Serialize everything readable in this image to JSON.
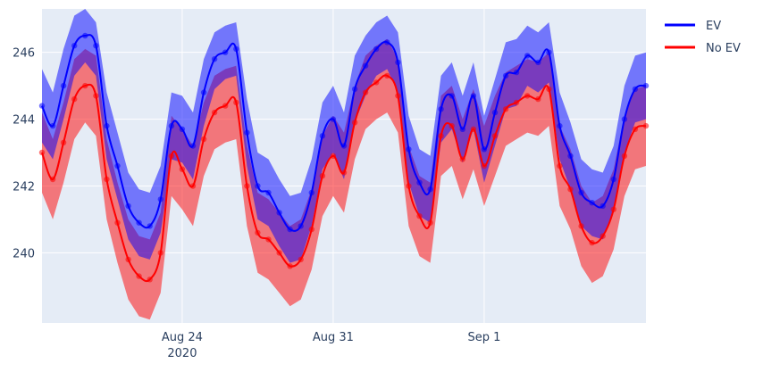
{
  "chart_data": {
    "type": "line",
    "title": "",
    "xlabel": "",
    "ylabel": "",
    "x_ticks": [
      {
        "label": "Aug 24",
        "sublabel": "2020",
        "x": 6.5
      },
      {
        "label": "Aug 31",
        "sublabel": "",
        "x": 13.5
      },
      {
        "label": "Sep 1",
        "sublabel": "",
        "x": 20.5
      }
    ],
    "xlim": [
      0,
      28
    ],
    "y_ticks": [
      240,
      242,
      244,
      246
    ],
    "ylim": [
      237.9,
      247.3
    ],
    "grid": true,
    "legend": {
      "placement": "top-right"
    },
    "x": [
      0,
      0.5,
      1,
      1.5,
      2,
      2.5,
      3,
      3.5,
      4,
      4.5,
      5,
      5.5,
      6,
      6.5,
      7,
      7.5,
      8,
      8.5,
      9,
      9.5,
      10,
      10.5,
      11,
      11.5,
      12,
      12.5,
      13,
      13.5,
      14,
      14.5,
      15,
      15.5,
      16,
      16.5,
      17,
      17.5,
      18,
      18.5,
      19,
      19.5,
      20,
      20.5,
      21,
      21.5,
      22,
      22.5,
      23,
      23.5,
      24,
      24.5,
      25,
      25.5,
      26,
      26.5,
      27,
      27.5,
      28
    ],
    "series": [
      {
        "name": "EV",
        "color": "#0000ff",
        "band_color": "rgba(0,0,255,0.5)",
        "y": [
          244.4,
          243.8,
          245.0,
          246.2,
          246.5,
          246.2,
          243.8,
          242.6,
          241.4,
          240.9,
          240.8,
          241.6,
          243.8,
          243.7,
          243.2,
          244.8,
          245.8,
          246.0,
          246.1,
          243.6,
          242.0,
          241.8,
          241.2,
          240.7,
          240.8,
          241.8,
          243.5,
          244.0,
          243.2,
          244.9,
          245.6,
          246.1,
          246.3,
          245.7,
          243.1,
          242.1,
          241.9,
          244.3,
          244.7,
          243.7,
          244.7,
          243.1,
          244.2,
          245.3,
          245.4,
          245.9,
          245.7,
          246.0,
          243.8,
          242.9,
          241.8,
          241.5,
          241.4,
          242.2,
          244.0,
          244.9,
          245.0
        ],
        "lower": [
          243.3,
          242.8,
          244.0,
          245.3,
          245.7,
          245.3,
          242.8,
          241.6,
          240.4,
          239.9,
          239.8,
          240.6,
          242.8,
          242.7,
          242.2,
          243.8,
          244.9,
          245.2,
          245.3,
          242.6,
          241.0,
          240.8,
          240.2,
          239.7,
          239.8,
          240.8,
          242.5,
          243.0,
          242.2,
          243.9,
          244.7,
          245.3,
          245.5,
          244.8,
          242.1,
          241.1,
          240.9,
          243.3,
          243.7,
          242.7,
          243.7,
          242.1,
          243.2,
          244.3,
          244.4,
          245.0,
          244.8,
          245.1,
          242.8,
          241.9,
          240.8,
          240.5,
          240.4,
          241.2,
          243.0,
          243.9,
          244.0
        ],
        "upper": [
          245.5,
          244.8,
          246.1,
          247.1,
          247.3,
          246.9,
          244.8,
          243.6,
          242.4,
          241.9,
          241.8,
          242.6,
          244.8,
          244.7,
          244.2,
          245.8,
          246.6,
          246.8,
          246.9,
          244.6,
          243.0,
          242.8,
          242.2,
          241.7,
          241.8,
          242.8,
          244.5,
          245.0,
          244.2,
          245.9,
          246.5,
          246.9,
          247.1,
          246.6,
          244.1,
          243.1,
          242.9,
          245.3,
          245.7,
          244.7,
          245.7,
          244.1,
          245.2,
          246.3,
          246.4,
          246.8,
          246.6,
          246.9,
          244.8,
          243.9,
          242.8,
          242.5,
          242.4,
          243.2,
          245.0,
          245.9,
          246.0
        ]
      },
      {
        "name": "No EV",
        "color": "#ff0000",
        "band_color": "rgba(255,0,0,0.5)",
        "y": [
          243.0,
          242.2,
          243.3,
          244.6,
          245.0,
          244.7,
          242.2,
          240.9,
          239.8,
          239.3,
          239.2,
          240.0,
          242.9,
          242.5,
          242.0,
          243.4,
          244.2,
          244.4,
          244.5,
          242.0,
          240.6,
          240.4,
          240.0,
          239.6,
          239.8,
          240.7,
          242.3,
          242.9,
          242.4,
          243.9,
          244.8,
          245.1,
          245.3,
          244.7,
          242.0,
          241.1,
          240.9,
          243.5,
          243.8,
          242.8,
          243.7,
          242.6,
          243.5,
          244.3,
          244.5,
          244.7,
          244.6,
          244.9,
          242.6,
          241.9,
          240.8,
          240.3,
          240.5,
          241.3,
          242.9,
          243.7,
          243.8
        ],
        "lower": [
          241.8,
          241.0,
          242.1,
          243.4,
          243.9,
          243.5,
          241.0,
          239.7,
          238.6,
          238.1,
          238.0,
          238.8,
          241.7,
          241.3,
          240.8,
          242.3,
          243.1,
          243.3,
          243.4,
          240.8,
          239.4,
          239.2,
          238.8,
          238.4,
          238.6,
          239.5,
          241.1,
          241.7,
          241.2,
          242.8,
          243.7,
          244.0,
          244.2,
          243.6,
          240.8,
          239.9,
          239.7,
          242.3,
          242.6,
          241.6,
          242.5,
          241.4,
          242.3,
          243.2,
          243.4,
          243.6,
          243.5,
          243.8,
          241.4,
          240.7,
          239.6,
          239.1,
          239.3,
          240.1,
          241.7,
          242.5,
          242.6
        ],
        "upper": [
          244.2,
          243.4,
          244.5,
          245.8,
          246.1,
          245.9,
          243.4,
          242.1,
          241.0,
          240.5,
          240.4,
          241.2,
          244.1,
          243.7,
          243.2,
          244.5,
          245.3,
          245.5,
          245.6,
          243.2,
          241.8,
          241.6,
          241.2,
          240.8,
          241.0,
          241.9,
          243.5,
          244.1,
          243.6,
          245.0,
          245.9,
          246.2,
          246.4,
          245.8,
          243.2,
          242.3,
          242.1,
          244.7,
          245.0,
          244.0,
          244.9,
          243.8,
          244.7,
          245.4,
          245.6,
          245.8,
          245.7,
          246.0,
          243.8,
          243.1,
          242.0,
          241.5,
          241.7,
          242.5,
          244.1,
          244.9,
          245.0
        ]
      }
    ],
    "markers": true
  }
}
